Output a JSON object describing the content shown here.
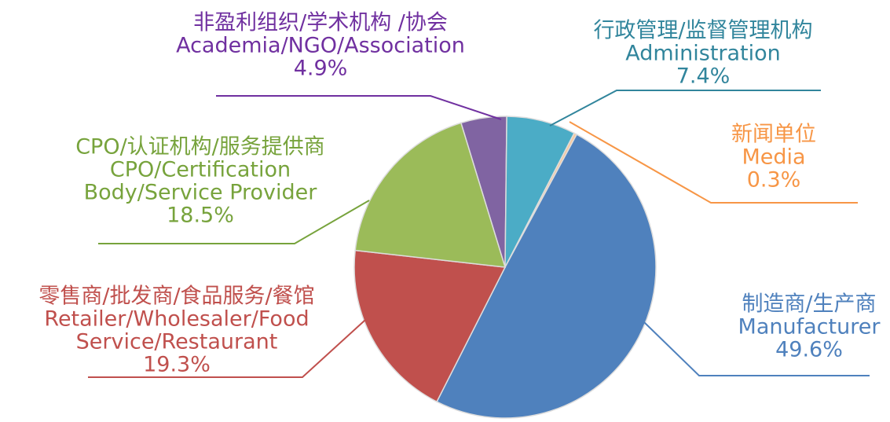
{
  "chart_data": {
    "type": "pie",
    "categories": [
      [
        "非盈利组织/学术机构 /协会",
        "Academia/NGO/Association"
      ],
      [
        "行政管理/监督管理机构",
        "Administration"
      ],
      [
        "新闻单位",
        "Media"
      ],
      [
        "制造商/生产商",
        "Manufacturer"
      ],
      [
        "零售商/批发商/食品服务/餐馆",
        "Retailer/Wholesaler/Food",
        "Service/Restaurant"
      ],
      [
        "CPO/认证机构/服务提供商",
        "CPO/Certification",
        "Body/Service Provider"
      ]
    ],
    "values": [
      4.9,
      7.4,
      0.3,
      49.6,
      19.3,
      18.5
    ],
    "value_labels": [
      "4.9%",
      "7.4%",
      "0.3%",
      "49.6%",
      "19.3%",
      "18.5%"
    ],
    "colors": [
      "#8064a2",
      "#4bacc6",
      "#f9c99d",
      "#4f81bd",
      "#c0504d",
      "#9bbb59"
    ],
    "label_colors": [
      "#7030a0",
      "#31859c",
      "#f79646",
      "#4f81bd",
      "#c0504d",
      "#77a33c"
    ]
  }
}
